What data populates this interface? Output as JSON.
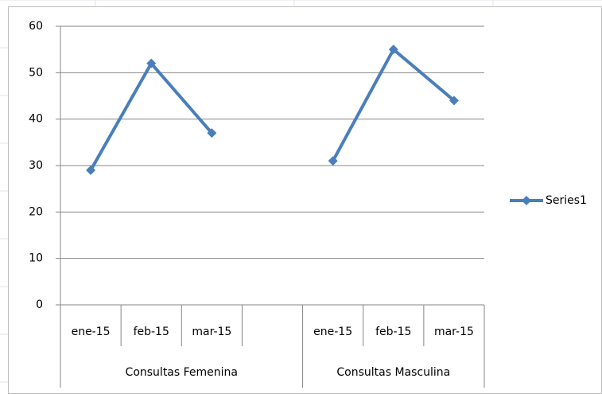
{
  "chart_data": {
    "type": "line",
    "categories": [
      "ene-15",
      "feb-15",
      "mar-15",
      null,
      "ene-15",
      "feb-15",
      "mar-15"
    ],
    "groups": [
      {
        "label": "Consultas Femenina",
        "size": 4
      },
      {
        "label": "Consultas Masculina",
        "size": 3
      }
    ],
    "series": [
      {
        "name": "Series1",
        "color": "#4a7ebb",
        "values": [
          29,
          52,
          37,
          null,
          31,
          55,
          44
        ]
      }
    ],
    "ylim": [
      0,
      60
    ],
    "yticks": [
      0,
      10,
      20,
      30,
      40,
      50,
      60
    ],
    "grid": true,
    "legend": "right"
  }
}
